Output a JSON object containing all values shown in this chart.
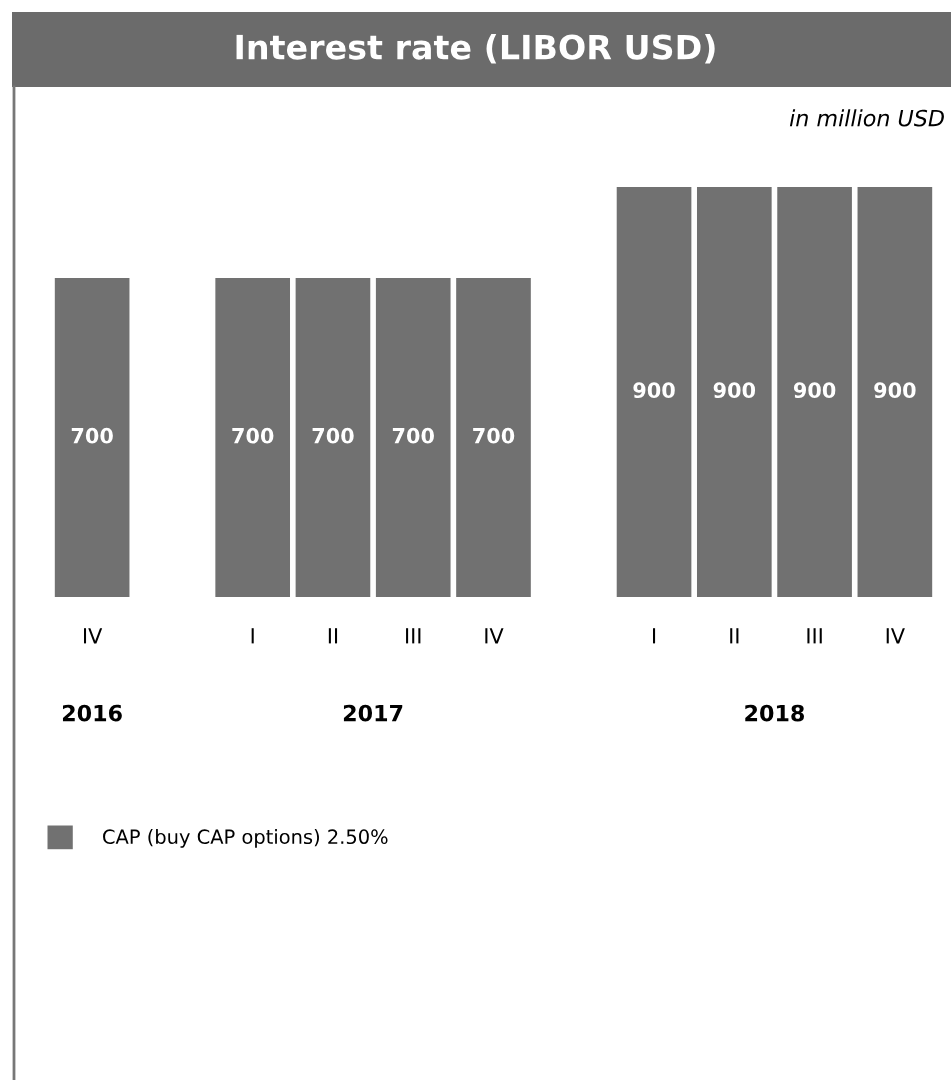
{
  "chart_data": {
    "type": "bar",
    "title": "Interest rate (LIBOR USD)",
    "categories": [
      "IV",
      null,
      "I",
      "II",
      "III",
      "IV",
      null,
      "I",
      "II",
      "III",
      "IV"
    ],
    "series": [
      {
        "name": "CAP (buy CAP options) 2.50%",
        "color": "#717171",
        "values": [
          700,
          null,
          700,
          700,
          700,
          700,
          null,
          900,
          900,
          900,
          900
        ]
      }
    ],
    "data_labels": true,
    "legend": "bottom left",
    "annotations": [
      "2016",
      "2017",
      "2018",
      "in million USD"
    ]
  }
}
